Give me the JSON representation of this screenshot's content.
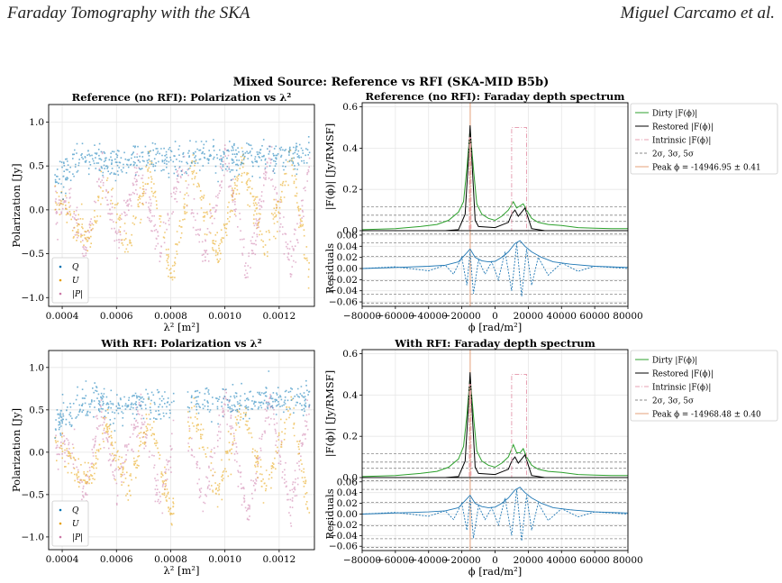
{
  "running_header": {
    "left": "Faraday Tomography with the SKA",
    "right": "Miguel Carcamo et al."
  },
  "suptitle": "Mixed Source: Reference vs RFI (SKA-MID B5b)",
  "colors": {
    "Q": "#0072b2",
    "U": "#e69f00",
    "P": "#cc79a7",
    "dirty": "#2ca02c",
    "restored": "#000000",
    "intrinsic": "#e7a1b3",
    "sigma": "#888888",
    "peak": "#e4a07a",
    "residual": "#1f77b4"
  },
  "chart_data": [
    {
      "type": "scatter",
      "title": "Reference (no RFI): Polarization vs λ²",
      "xlabel": "λ² [m²]",
      "ylabel": "Polarization [Jy]",
      "xlim": [
        0.00035,
        0.00133
      ],
      "ylim": [
        -1.1,
        1.2
      ],
      "xticks": [
        "0.0004",
        "0.0006",
        "0.0008",
        "0.0010",
        "0.0012"
      ],
      "yticks": [
        "−1.0",
        "−0.5",
        "0.0",
        "0.5",
        "1.0"
      ],
      "legend": {
        "position": "lower-left",
        "entries": [
          "Q",
          "U",
          "|P|"
        ]
      },
      "grid": true,
      "rfi_gaps": [],
      "series": [
        {
          "name": "Q",
          "x": [
            0.00037,
            0.00045,
            0.00052,
            0.0006,
            0.00068,
            0.00076,
            0.00084,
            0.00092,
            0.001,
            0.00108,
            0.00116,
            0.00124,
            0.00131
          ],
          "y": [
            0.35,
            0.55,
            0.62,
            0.5,
            0.6,
            0.55,
            0.6,
            0.62,
            0.58,
            0.6,
            0.62,
            0.6,
            0.65
          ]
        },
        {
          "name": "U",
          "x": [
            0.00037,
            0.00042,
            0.0005,
            0.00056,
            0.00064,
            0.00072,
            0.0008,
            0.00088,
            0.00097,
            0.00106,
            0.00115,
            0.00124,
            0.00131
          ],
          "y": [
            0.2,
            -0.05,
            -0.35,
            0.35,
            -0.45,
            0.45,
            -0.75,
            0.5,
            -0.5,
            0.55,
            -0.45,
            0.6,
            -0.75
          ]
        },
        {
          "name": "|P|",
          "x": [
            0.00037,
            0.00043,
            0.00048,
            0.00054,
            0.0006,
            0.00068,
            0.00076,
            0.00084,
            0.00092,
            0.001,
            0.00108,
            0.00116,
            0.00124,
            0.00131
          ],
          "y": [
            0.0,
            0.1,
            -0.55,
            0.5,
            -0.4,
            0.5,
            -0.5,
            0.55,
            -0.55,
            0.65,
            -0.75,
            0.6,
            -0.65,
            0.55
          ]
        }
      ]
    },
    {
      "type": "line",
      "title": "Reference (no RFI): Faraday depth spectrum",
      "ylabel": "|F(ϕ)| [Jy/RMSF]",
      "xlim": [
        -80000,
        80000
      ],
      "ylim": [
        0.0,
        0.62
      ],
      "yticks": [
        "0.0",
        "0.2",
        "0.4",
        "0.6"
      ],
      "grid": true,
      "legend": {
        "position": "outside-right",
        "entries": [
          "Dirty |F(ϕ)|",
          "Restored |F(ϕ)|",
          "Intrinsic |F(ϕ)|",
          "2σ, 3σ, 5σ",
          "Peak ϕ = -14946.95 ± 0.41"
        ]
      },
      "sigma_levels": [
        0.045,
        0.075,
        0.115
      ],
      "peak_phi": -14946.95,
      "series": [
        {
          "name": "Dirty |F(ϕ)|",
          "x": [
            -80000,
            -60000,
            -45000,
            -35000,
            -28000,
            -22000,
            -19000,
            -17000,
            -15000,
            -13000,
            -11000,
            -8000,
            -4000,
            0,
            4000,
            8000,
            11000,
            13000,
            15000,
            17000,
            19000,
            22000,
            26000,
            32000,
            40000,
            50000,
            60000,
            70000,
            80000
          ],
          "y": [
            0.005,
            0.01,
            0.02,
            0.03,
            0.05,
            0.09,
            0.14,
            0.3,
            0.49,
            0.3,
            0.13,
            0.08,
            0.06,
            0.05,
            0.07,
            0.1,
            0.14,
            0.11,
            0.12,
            0.13,
            0.1,
            0.06,
            0.04,
            0.03,
            0.025,
            0.015,
            0.012,
            0.01,
            0.01
          ]
        },
        {
          "name": "Restored |F(ϕ)|",
          "x": [
            -80000,
            -30000,
            -22000,
            -18000,
            -16000,
            -15000,
            -14000,
            -12000,
            -10000,
            0,
            8000,
            10000,
            12000,
            14000,
            16000,
            18000,
            20000,
            22000,
            30000,
            80000
          ],
          "y": [
            0.0,
            0.0,
            0.005,
            0.08,
            0.35,
            0.51,
            0.35,
            0.05,
            0.02,
            0.015,
            0.04,
            0.08,
            0.1,
            0.07,
            0.09,
            0.11,
            0.06,
            0.01,
            0.0,
            0.0
          ]
        },
        {
          "name": "Intrinsic |F(ϕ)|",
          "x": [
            -80000,
            -15500,
            -15500,
            -14500,
            -14500,
            10000,
            10000,
            19000,
            19000,
            80000
          ],
          "y": [
            0,
            0,
            0.45,
            0.45,
            0,
            0,
            0.5,
            0.5,
            0,
            0
          ]
        }
      ]
    },
    {
      "type": "line",
      "title": "",
      "xlabel": "ϕ [rad/m²]",
      "ylabel": "Residuals",
      "xlim": [
        -80000,
        80000
      ],
      "ylim": [
        -0.068,
        0.068
      ],
      "xticks": [
        "−80000",
        "−60000",
        "−40000",
        "−20000",
        "0",
        "20000",
        "40000",
        "60000",
        "80000"
      ],
      "yticks": [
        "−0.06",
        "−0.04",
        "−0.02",
        "0.00",
        "0.02",
        "0.04",
        "0.06"
      ],
      "grid": true,
      "sigma_levels": [
        0.062,
        0.046,
        0.022
      ],
      "peak_phi": -14946.95,
      "series": [
        {
          "name": "|residual|",
          "x": [
            -80000,
            -60000,
            -40000,
            -30000,
            -22000,
            -18000,
            -15000,
            -12000,
            -8000,
            -4000,
            0,
            4000,
            8000,
            12000,
            15000,
            18000,
            22000,
            28000,
            35000,
            45000,
            60000,
            80000
          ],
          "y": [
            0.0,
            0.002,
            0.004,
            0.006,
            0.012,
            0.025,
            0.035,
            0.02,
            0.014,
            0.012,
            0.013,
            0.02,
            0.03,
            0.045,
            0.05,
            0.04,
            0.03,
            0.02,
            0.012,
            0.008,
            0.004,
            0.002
          ]
        },
        {
          "name": "Re residual",
          "x": [
            -80000,
            -60000,
            -40000,
            -30000,
            -25000,
            -20000,
            -17000,
            -15000,
            -13000,
            -10000,
            -6000,
            -2000,
            2000,
            6000,
            10000,
            13000,
            16000,
            19000,
            22000,
            26000,
            32000,
            40000,
            50000,
            60000,
            80000
          ],
          "y": [
            0.0,
            0.003,
            -0.004,
            0.006,
            -0.01,
            0.02,
            -0.03,
            0.03,
            -0.045,
            0.015,
            -0.01,
            0.012,
            -0.02,
            0.03,
            -0.04,
            0.045,
            -0.05,
            0.035,
            -0.03,
            0.02,
            -0.012,
            0.01,
            -0.005,
            0.004,
            0.0
          ]
        }
      ]
    },
    {
      "type": "scatter",
      "title": "With RFI: Polarization vs λ²",
      "xlabel": "λ² [m²]",
      "ylabel": "Polarization [Jy]",
      "xlim": [
        0.00035,
        0.00133
      ],
      "ylim": [
        -1.15,
        1.2
      ],
      "xticks": [
        "0.0004",
        "0.0006",
        "0.0008",
        "0.0010",
        "0.0012"
      ],
      "yticks": [
        "−1.0",
        "−0.5",
        "0.0",
        "0.5",
        "1.0"
      ],
      "legend": {
        "position": "lower-left",
        "entries": [
          "Q",
          "U",
          "|P|"
        ]
      },
      "grid": true,
      "rfi_gaps": [
        [
          0.00081,
          0.00086
        ]
      ],
      "series": [
        {
          "name": "Q",
          "x": [
            0.00037,
            0.00045,
            0.00052,
            0.0006,
            0.00068,
            0.00076,
            0.00084,
            0.00092,
            0.001,
            0.00108,
            0.00116,
            0.00124,
            0.00131
          ],
          "y": [
            0.35,
            0.55,
            0.62,
            0.5,
            0.6,
            0.55,
            0.6,
            0.62,
            0.58,
            0.6,
            0.62,
            0.6,
            0.65
          ]
        },
        {
          "name": "U",
          "x": [
            0.00037,
            0.00042,
            0.0005,
            0.00056,
            0.00064,
            0.00072,
            0.0008,
            0.00088,
            0.00097,
            0.00106,
            0.00115,
            0.00124,
            0.00131
          ],
          "y": [
            0.2,
            -0.05,
            -0.35,
            0.35,
            -0.45,
            0.45,
            -0.75,
            0.5,
            -0.5,
            0.55,
            -0.45,
            0.6,
            -0.75
          ]
        },
        {
          "name": "|P|",
          "x": [
            0.00037,
            0.00043,
            0.00048,
            0.00054,
            0.0006,
            0.00068,
            0.00076,
            0.00084,
            0.00092,
            0.001,
            0.00108,
            0.00116,
            0.00124,
            0.00131
          ],
          "y": [
            0.0,
            0.1,
            -0.55,
            0.5,
            -0.4,
            0.5,
            -0.5,
            0.55,
            -0.55,
            0.65,
            -0.75,
            0.6,
            -0.65,
            0.55
          ]
        }
      ]
    },
    {
      "type": "line",
      "title": "With RFI: Faraday depth spectrum",
      "ylabel": "|F(ϕ)| [Jy/RMSF]",
      "xlim": [
        -80000,
        80000
      ],
      "ylim": [
        0.0,
        0.62
      ],
      "yticks": [
        "0.0",
        "0.2",
        "0.4",
        "0.6"
      ],
      "grid": true,
      "legend": {
        "position": "outside-right",
        "entries": [
          "Dirty |F(ϕ)|",
          "Restored |F(ϕ)|",
          "Intrinsic |F(ϕ)|",
          "2σ, 3σ, 5σ",
          "Peak ϕ = -14968.48 ± 0.40"
        ]
      },
      "sigma_levels": [
        0.045,
        0.075,
        0.115
      ],
      "peak_phi": -14968.48,
      "series": [
        {
          "name": "Dirty |F(ϕ)|",
          "x": [
            -80000,
            -60000,
            -45000,
            -35000,
            -28000,
            -22000,
            -19000,
            -17000,
            -15000,
            -13000,
            -11000,
            -8000,
            -4000,
            0,
            4000,
            8000,
            11000,
            13000,
            15000,
            17000,
            19000,
            22000,
            26000,
            32000,
            40000,
            50000,
            60000,
            70000,
            80000
          ],
          "y": [
            0.005,
            0.01,
            0.02,
            0.03,
            0.05,
            0.09,
            0.15,
            0.3,
            0.49,
            0.3,
            0.13,
            0.08,
            0.06,
            0.05,
            0.07,
            0.1,
            0.16,
            0.12,
            0.12,
            0.14,
            0.1,
            0.06,
            0.04,
            0.03,
            0.025,
            0.015,
            0.012,
            0.01,
            0.01
          ]
        },
        {
          "name": "Restored |F(ϕ)|",
          "x": [
            -80000,
            -30000,
            -22000,
            -18000,
            -16000,
            -15000,
            -14000,
            -12000,
            -10000,
            0,
            8000,
            10000,
            12000,
            14000,
            16000,
            18000,
            20000,
            22000,
            30000,
            80000
          ],
          "y": [
            0.0,
            0.0,
            0.005,
            0.08,
            0.35,
            0.51,
            0.35,
            0.05,
            0.02,
            0.015,
            0.04,
            0.08,
            0.1,
            0.07,
            0.09,
            0.11,
            0.06,
            0.01,
            0.0,
            0.0
          ]
        },
        {
          "name": "Intrinsic |F(ϕ)|",
          "x": [
            -80000,
            -15500,
            -15500,
            -14500,
            -14500,
            10000,
            10000,
            19000,
            19000,
            80000
          ],
          "y": [
            0,
            0,
            0.45,
            0.45,
            0,
            0,
            0.5,
            0.5,
            0,
            0
          ]
        }
      ]
    },
    {
      "type": "line",
      "title": "",
      "xlabel": "ϕ [rad/m²]",
      "ylabel": "Residuals",
      "xlim": [
        -80000,
        80000
      ],
      "ylim": [
        -0.068,
        0.068
      ],
      "xticks": [
        "−80000",
        "−60000",
        "−40000",
        "−20000",
        "0",
        "20000",
        "40000",
        "60000",
        "80000"
      ],
      "yticks": [
        "−0.06",
        "−0.04",
        "−0.02",
        "0.00",
        "0.02",
        "0.04",
        "0.06"
      ],
      "grid": true,
      "sigma_levels": [
        0.062,
        0.046,
        0.022
      ],
      "peak_phi": -14968.48,
      "series": [
        {
          "name": "|residual|",
          "x": [
            -80000,
            -60000,
            -40000,
            -30000,
            -22000,
            -18000,
            -15000,
            -12000,
            -8000,
            -4000,
            0,
            4000,
            8000,
            12000,
            15000,
            18000,
            22000,
            28000,
            35000,
            45000,
            60000,
            80000
          ],
          "y": [
            0.0,
            0.002,
            0.004,
            0.006,
            0.012,
            0.025,
            0.035,
            0.02,
            0.014,
            0.012,
            0.013,
            0.02,
            0.03,
            0.045,
            0.05,
            0.04,
            0.03,
            0.02,
            0.012,
            0.008,
            0.004,
            0.002
          ]
        },
        {
          "name": "Re residual",
          "x": [
            -80000,
            -60000,
            -40000,
            -30000,
            -25000,
            -20000,
            -17000,
            -15000,
            -13000,
            -10000,
            -6000,
            -2000,
            2000,
            6000,
            10000,
            13000,
            16000,
            19000,
            22000,
            26000,
            32000,
            40000,
            50000,
            60000,
            80000
          ],
          "y": [
            0.0,
            0.003,
            -0.004,
            0.006,
            -0.01,
            0.02,
            -0.03,
            0.03,
            -0.045,
            0.015,
            -0.01,
            0.012,
            -0.02,
            0.03,
            -0.04,
            0.045,
            -0.05,
            0.035,
            -0.03,
            0.02,
            -0.012,
            0.01,
            -0.005,
            0.004,
            0.0
          ]
        }
      ]
    }
  ]
}
